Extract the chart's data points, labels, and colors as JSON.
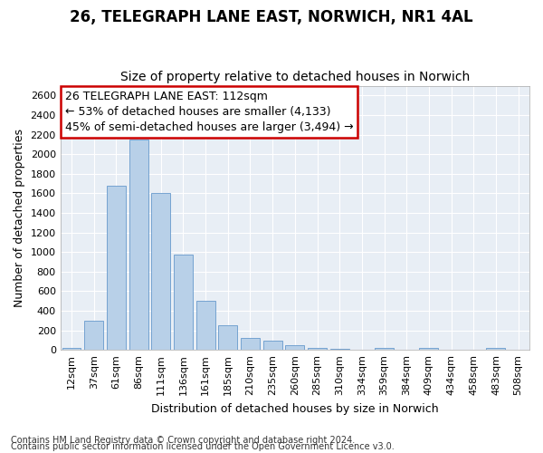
{
  "title": "26, TELEGRAPH LANE EAST, NORWICH, NR1 4AL",
  "subtitle": "Size of property relative to detached houses in Norwich",
  "xlabel": "Distribution of detached houses by size in Norwich",
  "ylabel": "Number of detached properties",
  "categories": [
    "12sqm",
    "37sqm",
    "61sqm",
    "86sqm",
    "111sqm",
    "136sqm",
    "161sqm",
    "185sqm",
    "210sqm",
    "235sqm",
    "260sqm",
    "285sqm",
    "310sqm",
    "334sqm",
    "359sqm",
    "384sqm",
    "409sqm",
    "434sqm",
    "458sqm",
    "483sqm",
    "508sqm"
  ],
  "values": [
    25,
    300,
    1680,
    2150,
    1600,
    970,
    500,
    250,
    125,
    100,
    45,
    25,
    10,
    5,
    20,
    5,
    20,
    5,
    5,
    25,
    5
  ],
  "bar_color": "#b8d0e8",
  "bar_edge_color": "#6699cc",
  "annotation_text": "26 TELEGRAPH LANE EAST: 112sqm\n← 53% of detached houses are smaller (4,133)\n45% of semi-detached houses are larger (3,494) →",
  "annotation_box_color": "#ffffff",
  "annotation_box_edge_color": "#cc0000",
  "ylim": [
    0,
    2700
  ],
  "yticks": [
    0,
    200,
    400,
    600,
    800,
    1000,
    1200,
    1400,
    1600,
    1800,
    2000,
    2200,
    2400,
    2600
  ],
  "footnote1": "Contains HM Land Registry data © Crown copyright and database right 2024.",
  "footnote2": "Contains public sector information licensed under the Open Government Licence v3.0.",
  "figure_background": "#ffffff",
  "axes_background": "#e8eef5",
  "grid_color": "#ffffff",
  "title_fontsize": 12,
  "subtitle_fontsize": 10,
  "xlabel_fontsize": 9,
  "ylabel_fontsize": 9,
  "tick_fontsize": 8,
  "annotation_fontsize": 9
}
